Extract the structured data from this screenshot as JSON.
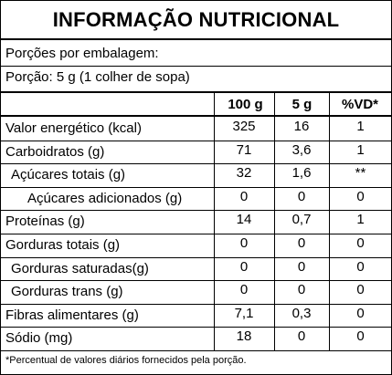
{
  "title": "INFORMAÇÃO NUTRICIONAL",
  "serving": {
    "per_package": "Porções por embalagem:",
    "portion": "Porção: 5 g (1 colher de sopa)"
  },
  "columns": [
    "100 g",
    "5 g",
    "%VD*"
  ],
  "rows": [
    {
      "label": "Valor energético (kcal)",
      "indent": 0,
      "c1": "325",
      "c2": "16",
      "c3": "1"
    },
    {
      "label": "Carboidratos (g)",
      "indent": 0,
      "c1": "71",
      "c2": "3,6",
      "c3": "1"
    },
    {
      "label": "Açúcares totais (g)",
      "indent": 1,
      "c1": "32",
      "c2": "1,6",
      "c3": "**"
    },
    {
      "label": "Açúcares adicionados (g)",
      "indent": 2,
      "c1": "0",
      "c2": "0",
      "c3": "0"
    },
    {
      "label": "Proteínas (g)",
      "indent": 0,
      "c1": "14",
      "c2": "0,7",
      "c3": "1"
    },
    {
      "label": "Gorduras totais (g)",
      "indent": 0,
      "c1": "0",
      "c2": "0",
      "c3": "0"
    },
    {
      "label": "Gorduras saturadas(g)",
      "indent": 1,
      "c1": "0",
      "c2": "0",
      "c3": "0"
    },
    {
      "label": "Gorduras trans (g)",
      "indent": 1,
      "c1": "0",
      "c2": "0",
      "c3": "0"
    },
    {
      "label": "Fibras alimentares (g)",
      "indent": 0,
      "c1": "7,1",
      "c2": "0,3",
      "c3": "0"
    },
    {
      "label": "Sódio (mg)",
      "indent": 0,
      "c1": "18",
      "c2": "0",
      "c3": "0"
    }
  ],
  "footnote": "*Percentual de valores diários fornecidos pela porção."
}
